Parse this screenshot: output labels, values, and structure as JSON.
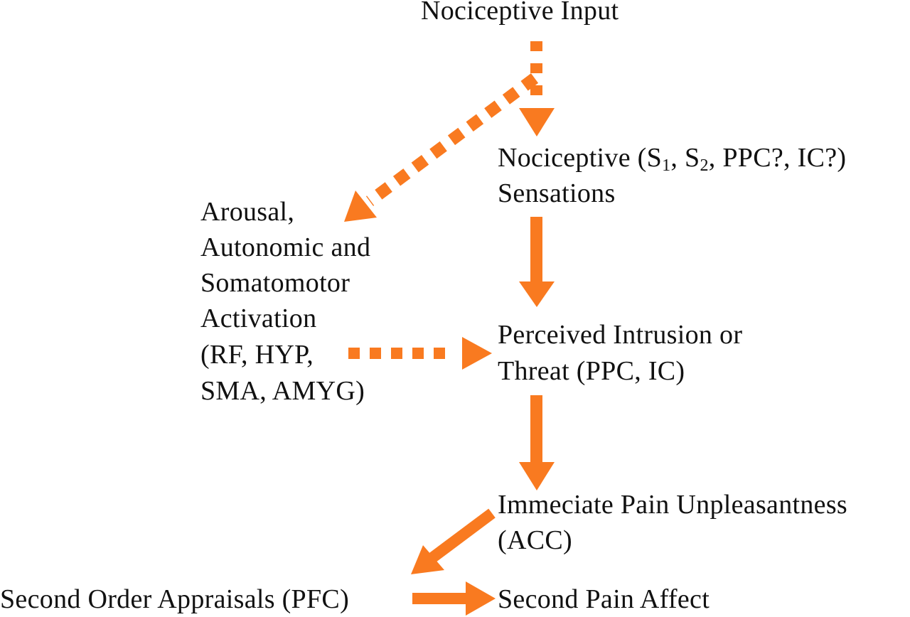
{
  "colors": {
    "arrow": "#F97A20",
    "text": "#111111"
  },
  "nodes": {
    "input": "Nociceptive Input",
    "sensations": {
      "prefix": "Nociceptive (S",
      "sub1": "1",
      "mid": ", S",
      "sub2": "2",
      "suffix": ", PPC?, IC?)",
      "line2": "Sensations"
    },
    "arousal": [
      "Arousal,",
      "Autonomic and",
      "Somatomotor",
      "Activation",
      "(RF, HYP,",
      "SMA, AMYG)"
    ],
    "threat": [
      "Perceived Intrusion or",
      "Threat (PPC, IC)"
    ],
    "unpleasantness": [
      "Immeciate Pain Unpleasantness",
      "(ACC)"
    ],
    "appraisals": "Second Order Appraisals (PFC)",
    "affect": "Second Pain Affect"
  }
}
